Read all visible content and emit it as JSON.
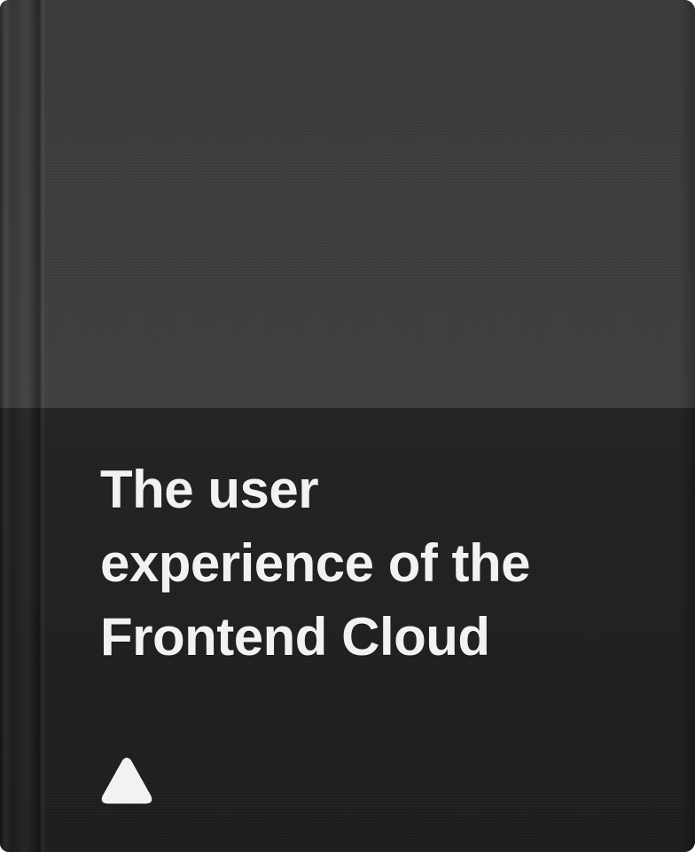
{
  "cover": {
    "title_lines": [
      "The user",
      "experience of the",
      "Frontend Cloud"
    ],
    "logo_icon": "triangle-logo-icon",
    "colors": {
      "top_panel": "#3d3d3d",
      "bottom_panel": "#212121",
      "title_text": "#f2f2f2",
      "logo": "#f2f2f2"
    }
  }
}
